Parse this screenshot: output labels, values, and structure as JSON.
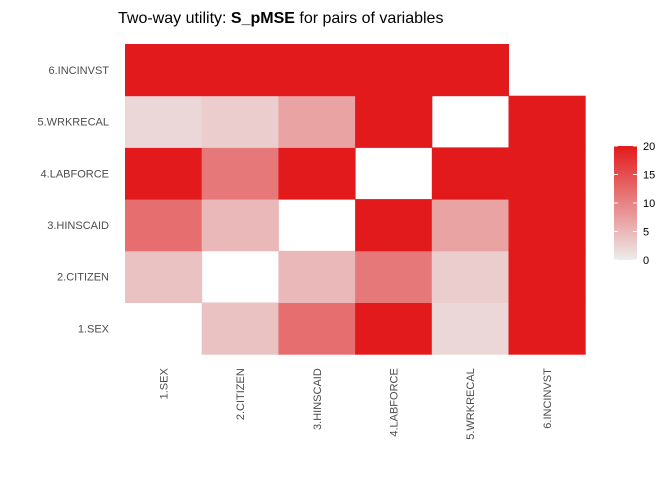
{
  "chart_data": {
    "type": "heatmap",
    "title_parts": [
      "Two-way utility: ",
      "S_pMSE",
      " for pairs of variables"
    ],
    "xlabel": "",
    "ylabel": "",
    "x_categories": [
      "1.SEX",
      "2.CITIZEN",
      "3.HINSCAID",
      "4.LABFORCE",
      "5.WRKRECAL",
      "6.INCINVST"
    ],
    "y_categories": [
      "1.SEX",
      "2.CITIZEN",
      "3.HINSCAID",
      "4.LABFORCE",
      "5.WRKRECAL",
      "6.INCINVST"
    ],
    "cells": [
      {
        "x": "2.CITIZEN",
        "y": "1.SEX",
        "value": 4
      },
      {
        "x": "3.HINSCAID",
        "y": "1.SEX",
        "value": 12
      },
      {
        "x": "4.LABFORCE",
        "y": "1.SEX",
        "value": 20
      },
      {
        "x": "5.WRKRECAL",
        "y": "1.SEX",
        "value": 2
      },
      {
        "x": "6.INCINVST",
        "y": "1.SEX",
        "value": 20
      },
      {
        "x": "1.SEX",
        "y": "2.CITIZEN",
        "value": 4
      },
      {
        "x": "3.HINSCAID",
        "y": "2.CITIZEN",
        "value": 5
      },
      {
        "x": "4.LABFORCE",
        "y": "2.CITIZEN",
        "value": 11
      },
      {
        "x": "5.WRKRECAL",
        "y": "2.CITIZEN",
        "value": 3
      },
      {
        "x": "6.INCINVST",
        "y": "2.CITIZEN",
        "value": 20
      },
      {
        "x": "1.SEX",
        "y": "3.HINSCAID",
        "value": 12
      },
      {
        "x": "2.CITIZEN",
        "y": "3.HINSCAID",
        "value": 5
      },
      {
        "x": "4.LABFORCE",
        "y": "3.HINSCAID",
        "value": 20
      },
      {
        "x": "5.WRKRECAL",
        "y": "3.HINSCAID",
        "value": 7
      },
      {
        "x": "6.INCINVST",
        "y": "3.HINSCAID",
        "value": 20
      },
      {
        "x": "1.SEX",
        "y": "4.LABFORCE",
        "value": 20
      },
      {
        "x": "2.CITIZEN",
        "y": "4.LABFORCE",
        "value": 11
      },
      {
        "x": "3.HINSCAID",
        "y": "4.LABFORCE",
        "value": 20
      },
      {
        "x": "5.WRKRECAL",
        "y": "4.LABFORCE",
        "value": 20
      },
      {
        "x": "6.INCINVST",
        "y": "4.LABFORCE",
        "value": 20
      },
      {
        "x": "1.SEX",
        "y": "5.WRKRECAL",
        "value": 2
      },
      {
        "x": "2.CITIZEN",
        "y": "5.WRKRECAL",
        "value": 3
      },
      {
        "x": "3.HINSCAID",
        "y": "5.WRKRECAL",
        "value": 7
      },
      {
        "x": "4.LABFORCE",
        "y": "5.WRKRECAL",
        "value": 20
      },
      {
        "x": "6.INCINVST",
        "y": "5.WRKRECAL",
        "value": 20
      },
      {
        "x": "1.SEX",
        "y": "6.INCINVST",
        "value": 20
      },
      {
        "x": "2.CITIZEN",
        "y": "6.INCINVST",
        "value": 20
      },
      {
        "x": "3.HINSCAID",
        "y": "6.INCINVST",
        "value": 20
      },
      {
        "x": "4.LABFORCE",
        "y": "6.INCINVST",
        "value": 20
      },
      {
        "x": "5.WRKRECAL",
        "y": "6.INCINVST",
        "value": 20
      }
    ],
    "legend": {
      "placement": "right",
      "range": [
        0,
        20
      ],
      "ticks": [
        0,
        5,
        10,
        15,
        20
      ],
      "color_low": "#ececec",
      "color_high": "#e31a1c"
    },
    "grid": false
  }
}
